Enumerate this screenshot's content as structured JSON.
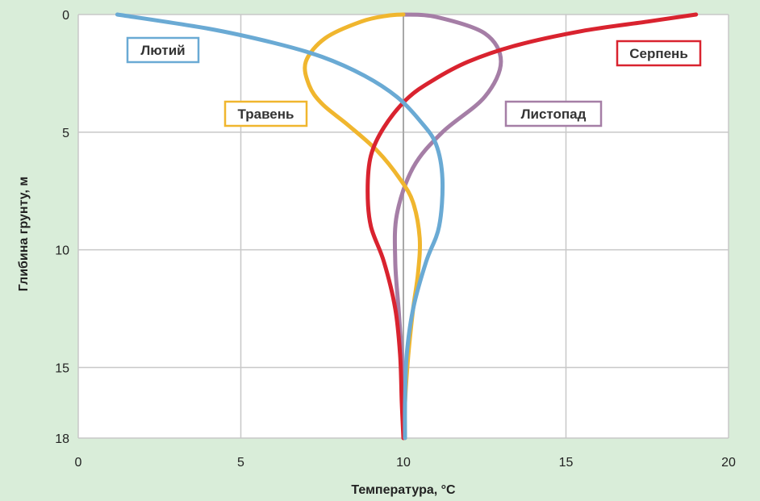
{
  "chart_data": {
    "type": "line",
    "xlabel": "Температура, °C",
    "ylabel": "Глибина грунту, м",
    "xlim": [
      0,
      20
    ],
    "ylim": [
      0,
      18
    ],
    "y_inverted": true,
    "grid": true,
    "x_ticks": [
      0,
      5,
      10,
      15,
      20
    ],
    "y_ticks": [
      0,
      5,
      10,
      15,
      18
    ],
    "x_tick_labels": [
      "0",
      "5",
      "10",
      "15",
      "20"
    ],
    "y_tick_labels": [
      "0",
      "5",
      "10",
      "15",
      "18"
    ],
    "series": [
      {
        "name": "Лютий",
        "color": "#6aaad4",
        "points": [
          [
            1.2,
            0
          ],
          [
            4,
            0.6
          ],
          [
            6,
            1.2
          ],
          [
            7.5,
            1.8
          ],
          [
            8.8,
            2.6
          ],
          [
            9.8,
            3.5
          ],
          [
            10.5,
            4.5
          ],
          [
            11.0,
            5.5
          ],
          [
            11.2,
            7
          ],
          [
            11.1,
            9
          ],
          [
            10.7,
            10.5
          ],
          [
            10.3,
            12.5
          ],
          [
            10.1,
            14.5
          ],
          [
            10.05,
            16.5
          ],
          [
            10.05,
            18
          ]
        ]
      },
      {
        "name": "Травень",
        "color": "#f0b62e",
        "points": [
          [
            10,
            0
          ],
          [
            9.5,
            0.05
          ],
          [
            8.7,
            0.3
          ],
          [
            7.6,
            1
          ],
          [
            7,
            2
          ],
          [
            7.1,
            3
          ],
          [
            7.5,
            3.8
          ],
          [
            8.3,
            4.7
          ],
          [
            9.2,
            5.8
          ],
          [
            9.9,
            7
          ],
          [
            10.3,
            8
          ],
          [
            10.5,
            9.5
          ],
          [
            10.45,
            11
          ],
          [
            10.3,
            12.5
          ],
          [
            10.15,
            14.5
          ],
          [
            10.05,
            16.5
          ],
          [
            10.05,
            18
          ]
        ]
      },
      {
        "name": "Серпень",
        "color": "#d9232f",
        "points": [
          [
            19,
            0
          ],
          [
            17.5,
            0.3
          ],
          [
            15.5,
            0.7
          ],
          [
            13.5,
            1.3
          ],
          [
            12,
            2
          ],
          [
            10.9,
            2.8
          ],
          [
            10.1,
            3.6
          ],
          [
            9.4,
            4.8
          ],
          [
            9.0,
            6
          ],
          [
            8.9,
            7.5
          ],
          [
            9.0,
            9
          ],
          [
            9.4,
            10.5
          ],
          [
            9.75,
            12.5
          ],
          [
            9.9,
            14.5
          ],
          [
            9.95,
            16.5
          ],
          [
            10.0,
            18
          ]
        ]
      },
      {
        "name": "Листопад",
        "color": "#a57ea6",
        "points": [
          [
            10,
            0
          ],
          [
            11,
            0.1
          ],
          [
            12.5,
            0.8
          ],
          [
            13,
            2
          ],
          [
            12.5,
            3.5
          ],
          [
            11.2,
            5
          ],
          [
            10.3,
            6.5
          ],
          [
            9.8,
            8.5
          ],
          [
            9.75,
            10.5
          ],
          [
            9.85,
            12.5
          ],
          [
            9.95,
            14.5
          ],
          [
            10.0,
            16.5
          ],
          [
            10.0,
            18
          ]
        ]
      }
    ],
    "annotations": [
      "Лютий",
      "Травень",
      "Серпень",
      "Листопад"
    ]
  }
}
